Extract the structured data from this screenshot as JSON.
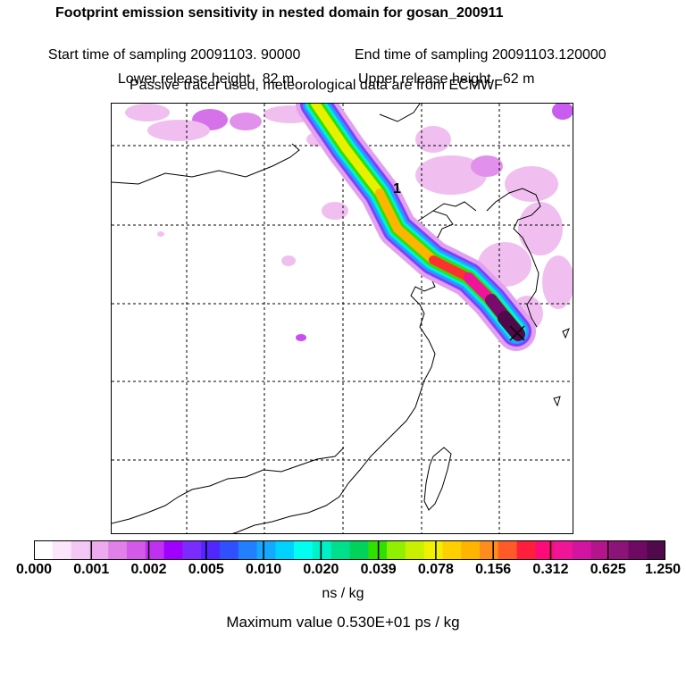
{
  "header": {
    "title": "Footprint emission sensitivity in nested domain for gosan_200911",
    "start_time": "Start time of sampling 20091103. 90000",
    "end_time": "End time of sampling 20091103.120000",
    "lower_height": "Lower release height   82 m",
    "upper_height": "Upper release height   62 m",
    "tracer_note": "Passive tracer used, meteorological data are from ECMWF"
  },
  "map": {
    "plume_label": "1",
    "receptor_marker": "x-marker-icon"
  },
  "colorbar": {
    "colors": [
      "#ffffff",
      "#fbe6fb",
      "#f4c8f4",
      "#eeaaee",
      "#e080e8",
      "#d35ae8",
      "#c030f0",
      "#a000ff",
      "#7a2cff",
      "#5028ff",
      "#3050ff",
      "#2080ff",
      "#14a8ff",
      "#00d2ff",
      "#00fff0",
      "#00f0c8",
      "#00e08c",
      "#00d25a",
      "#30e000",
      "#90f000",
      "#c8f000",
      "#f0f000",
      "#ffd000",
      "#ffb400",
      "#ff8c1e",
      "#ff5a28",
      "#ff1e3c",
      "#ff0a78",
      "#f01496",
      "#d214a0",
      "#b4148c",
      "#8c1478",
      "#6e0a64",
      "#500a4b"
    ],
    "tick_labels": [
      "0.000",
      "0.001",
      "0.002",
      "0.005",
      "0.010",
      "0.020",
      "0.039",
      "0.078",
      "0.156",
      "0.312",
      "0.625",
      "1.250"
    ],
    "units": "ns / kg"
  },
  "footer": {
    "max_value": "Maximum value  0.530E+01 ps / kg"
  }
}
